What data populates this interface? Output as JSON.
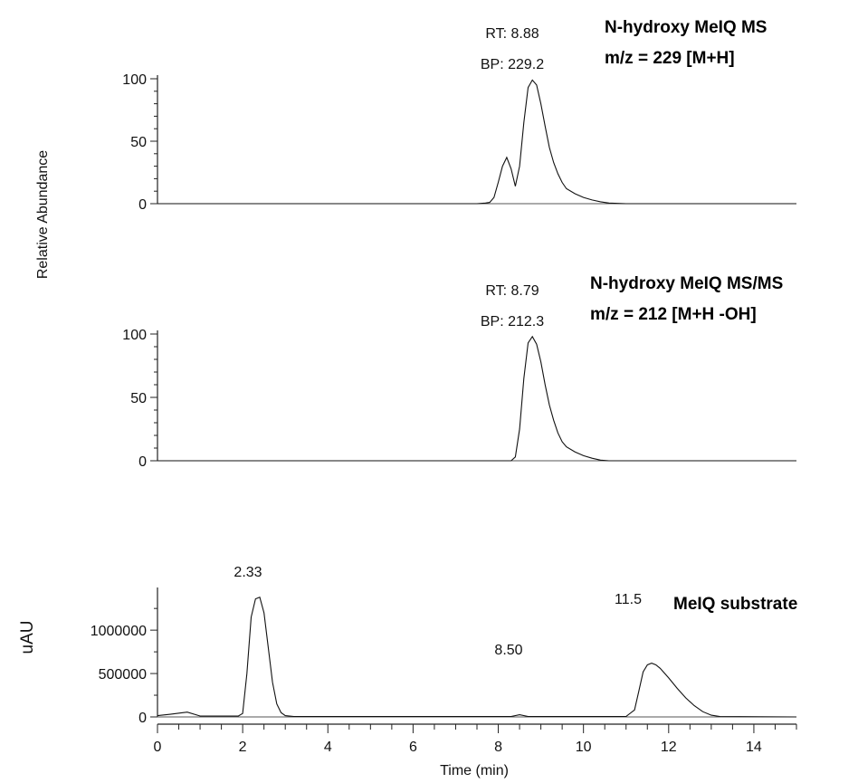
{
  "chart_data": [
    {
      "type": "line",
      "title": [
        "N-hydroxy MeIQ MS",
        "m/z = 229 [M+H]"
      ],
      "ylabel": "Relative Abundance",
      "ylim": [
        0,
        100
      ],
      "yticks": [
        "0",
        "50",
        "100"
      ],
      "xlim": [
        0,
        15
      ],
      "annotations": [
        "RT: 8.88",
        "BP: 229.2"
      ],
      "series": [
        {
          "x": [
            0,
            7.5,
            7.7,
            7.8,
            7.9,
            8.0,
            8.1,
            8.2,
            8.3,
            8.4,
            8.5,
            8.6,
            8.7,
            8.8,
            8.9,
            9.0,
            9.1,
            9.2,
            9.3,
            9.4,
            9.5,
            9.6,
            9.8,
            10.0,
            10.2,
            10.4,
            10.6,
            11.0,
            15.0
          ],
          "y": [
            0,
            0,
            0.5,
            1,
            5,
            17,
            30,
            37,
            28,
            14,
            30,
            65,
            93,
            99,
            95,
            80,
            62,
            45,
            33,
            24,
            17,
            12,
            8,
            5,
            3,
            1.5,
            0.5,
            0,
            0
          ]
        }
      ]
    },
    {
      "type": "line",
      "title": [
        "N-hydroxy MeIQ MS/MS",
        "m/z = 212 [M+H -OH]"
      ],
      "ylim": [
        0,
        100
      ],
      "yticks": [
        "0",
        "50",
        "100"
      ],
      "xlim": [
        0,
        15
      ],
      "annotations": [
        "RT: 8.79",
        "BP: 212.3"
      ],
      "series": [
        {
          "x": [
            0,
            8.3,
            8.4,
            8.5,
            8.6,
            8.7,
            8.8,
            8.9,
            9.0,
            9.1,
            9.2,
            9.3,
            9.4,
            9.5,
            9.6,
            9.8,
            10.0,
            10.2,
            10.4,
            10.6,
            15.0
          ],
          "y": [
            0,
            0,
            3,
            25,
            65,
            93,
            98,
            92,
            78,
            60,
            44,
            32,
            22,
            15,
            11,
            7,
            4,
            2,
            0.5,
            0,
            0
          ]
        }
      ]
    },
    {
      "type": "line",
      "title": [
        "MeIQ substrate"
      ],
      "ylabel": "uAU",
      "xlabel": "Time (min)",
      "ylim": [
        0,
        1450000
      ],
      "yticks": [
        "0",
        "500000",
        "1000000"
      ],
      "xlim": [
        0,
        15
      ],
      "xticks": [
        "0",
        "2",
        "4",
        "6",
        "8",
        "10",
        "12",
        "14"
      ],
      "annotations": [
        "2.33",
        "8.50",
        "11.5"
      ],
      "series": [
        {
          "x": [
            0,
            0.3,
            0.7,
            1.0,
            1.9,
            2.0,
            2.1,
            2.2,
            2.3,
            2.4,
            2.5,
            2.6,
            2.7,
            2.8,
            2.9,
            3.0,
            3.2,
            8.3,
            8.5,
            8.7,
            11.0,
            11.2,
            11.3,
            11.4,
            11.5,
            11.6,
            11.7,
            11.8,
            12.0,
            12.2,
            12.4,
            12.6,
            12.8,
            13.0,
            13.2,
            15.0
          ],
          "y": [
            15000,
            30000,
            55000,
            10000,
            10000,
            40000,
            500000,
            1150000,
            1360000,
            1380000,
            1200000,
            800000,
            400000,
            150000,
            50000,
            15000,
            5000,
            5000,
            25000,
            5000,
            5000,
            80000,
            300000,
            520000,
            600000,
            620000,
            600000,
            560000,
            450000,
            330000,
            220000,
            130000,
            60000,
            20000,
            5000,
            0
          ]
        }
      ]
    }
  ]
}
